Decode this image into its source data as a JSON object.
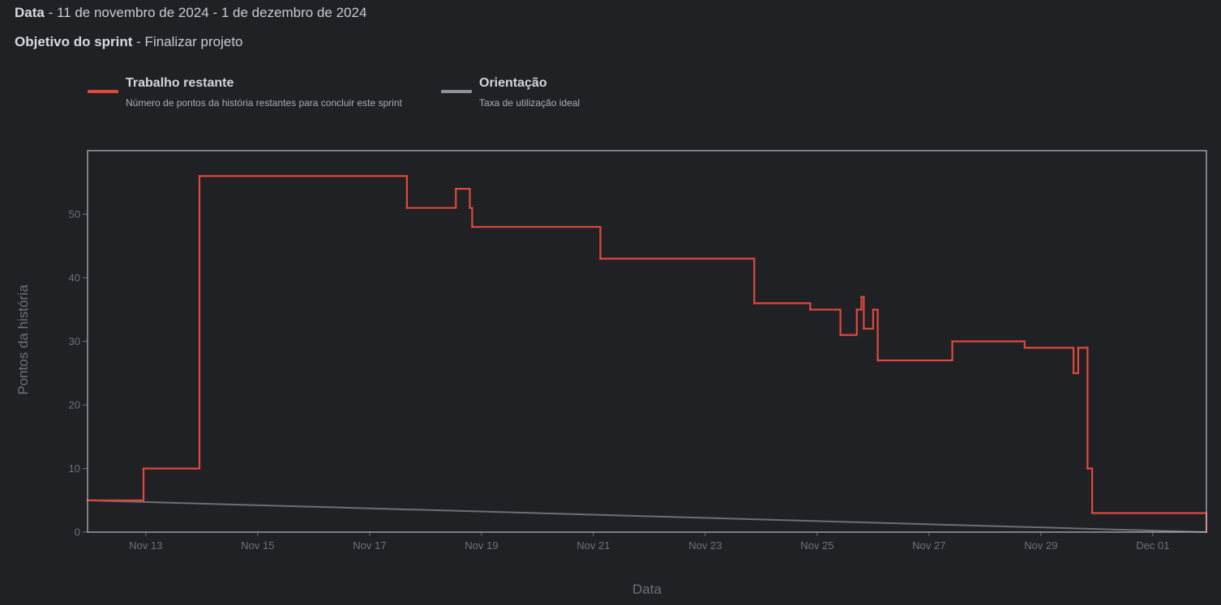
{
  "header": {
    "date_label": "Data",
    "date_value": " - 11 de novembro de 2024 - 1 de dezembro de 2024",
    "goal_label": "Objetivo do sprint",
    "goal_value": " - Finalizar projeto"
  },
  "legend": [
    {
      "title": "Trabalho restante",
      "description": "Número de pontos da história restantes para concluir este sprint",
      "color": "#e0483b"
    },
    {
      "title": "Orientação",
      "description": "Taxa de utilização ideal",
      "color": "#8a929c"
    }
  ],
  "chart_data": {
    "type": "line",
    "xlabel": "Data",
    "ylabel": "Pontos da história",
    "x_range": [
      "2024-11-11T23:00",
      "2024-12-01T23:00"
    ],
    "ylim": [
      0,
      60
    ],
    "y_ticks": [
      0,
      10,
      20,
      30,
      40,
      50
    ],
    "x_ticks": [
      {
        "date": "2024-11-13",
        "label": "Nov 13"
      },
      {
        "date": "2024-11-15",
        "label": "Nov 15"
      },
      {
        "date": "2024-11-17",
        "label": "Nov 17"
      },
      {
        "date": "2024-11-19",
        "label": "Nov 19"
      },
      {
        "date": "2024-11-21",
        "label": "Nov 21"
      },
      {
        "date": "2024-11-23",
        "label": "Nov 23"
      },
      {
        "date": "2024-11-25",
        "label": "Nov 25"
      },
      {
        "date": "2024-11-27",
        "label": "Nov 27"
      },
      {
        "date": "2024-11-29",
        "label": "Nov 29"
      },
      {
        "date": "2024-12-01",
        "label": "Dec 01"
      }
    ],
    "series": [
      {
        "name": "Trabalho restante",
        "color": "#e0483b",
        "step": true,
        "points": [
          [
            "2024-11-11T23:00",
            5
          ],
          [
            "2024-11-12T23:00",
            10
          ],
          [
            "2024-11-13T23:00",
            56
          ],
          [
            "2024-11-17T16:00",
            51
          ],
          [
            "2024-11-18T13:00",
            54
          ],
          [
            "2024-11-18T19:00",
            51
          ],
          [
            "2024-11-18T20:00",
            48
          ],
          [
            "2024-11-21T03:00",
            43
          ],
          [
            "2024-11-23T21:00",
            36
          ],
          [
            "2024-11-24T21:00",
            35
          ],
          [
            "2024-11-25T10:00",
            31
          ],
          [
            "2024-11-25T17:00",
            35
          ],
          [
            "2024-11-25T19:00",
            37
          ],
          [
            "2024-11-25T20:00",
            32
          ],
          [
            "2024-11-26T00:00",
            35
          ],
          [
            "2024-11-26T02:00",
            27
          ],
          [
            "2024-11-27T10:00",
            30
          ],
          [
            "2024-11-28T17:00",
            29
          ],
          [
            "2024-11-29T14:00",
            25
          ],
          [
            "2024-11-29T16:00",
            29
          ],
          [
            "2024-11-29T20:00",
            10
          ],
          [
            "2024-11-29T22:00",
            3
          ],
          [
            "2024-12-01T23:00",
            0
          ]
        ]
      },
      {
        "name": "Orientação",
        "color": "#6b6f76",
        "step": false,
        "points": [
          [
            "2024-11-11T23:00",
            5
          ],
          [
            "2024-12-01T23:00",
            0
          ]
        ]
      }
    ]
  }
}
